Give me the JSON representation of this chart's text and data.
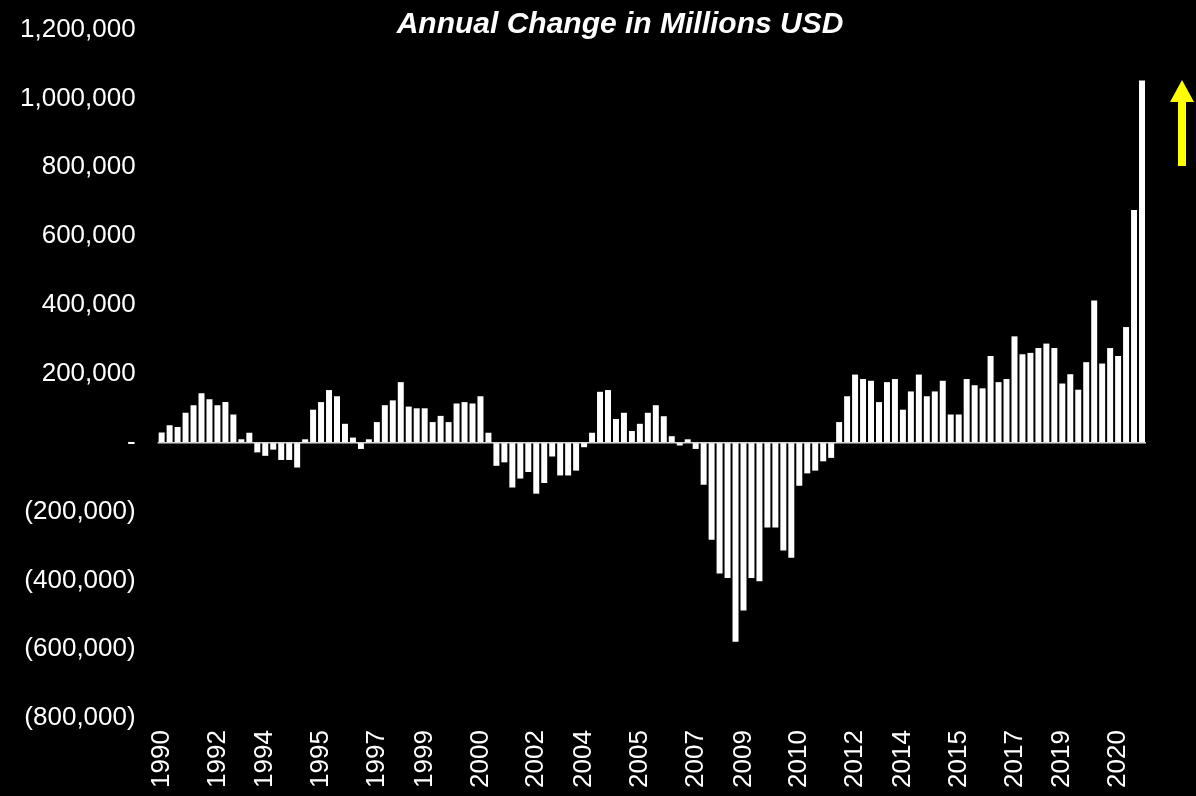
{
  "chart_data": {
    "type": "bar",
    "title": "Annual Change in Millions USD",
    "categories": [
      "1990",
      null,
      null,
      null,
      null,
      null,
      null,
      "1992",
      null,
      null,
      null,
      null,
      null,
      "1994",
      null,
      null,
      null,
      null,
      null,
      null,
      "1995",
      null,
      null,
      null,
      null,
      null,
      null,
      "1997",
      null,
      null,
      null,
      null,
      null,
      "1999",
      null,
      null,
      null,
      null,
      null,
      null,
      "2000",
      null,
      null,
      null,
      null,
      null,
      null,
      "2002",
      null,
      null,
      null,
      null,
      null,
      "2004",
      null,
      null,
      null,
      null,
      null,
      null,
      "2005",
      null,
      null,
      null,
      null,
      null,
      null,
      "2007",
      null,
      null,
      null,
      null,
      null,
      "2009",
      null,
      null,
      null,
      null,
      null,
      null,
      "2010",
      null,
      null,
      null,
      null,
      null,
      null,
      "2012",
      null,
      null,
      null,
      null,
      null,
      "2014",
      null,
      null,
      null,
      null,
      null,
      null,
      "2015",
      null,
      null,
      null,
      null,
      null,
      null,
      "2017",
      null,
      null,
      null,
      null,
      null,
      "2019",
      null,
      null,
      null,
      null,
      null,
      null,
      "2020",
      null,
      null,
      null
    ],
    "values": [
      30000,
      51000,
      46000,
      87000,
      109000,
      144000,
      126000,
      109000,
      118000,
      82000,
      10000,
      29000,
      -28000,
      -38000,
      -20000,
      -50000,
      -50000,
      -72000,
      10000,
      96000,
      118000,
      153000,
      135000,
      55000,
      15000,
      -18000,
      10000,
      60000,
      109000,
      123000,
      176000,
      105000,
      100000,
      100000,
      60000,
      78000,
      60000,
      114000,
      118000,
      114000,
      135000,
      29000,
      -67000,
      -57000,
      -130000,
      -104000,
      -85000,
      -148000,
      -117000,
      -40000,
      -95000,
      -95000,
      -81000,
      -13000,
      29000,
      148000,
      153000,
      69000,
      87000,
      34000,
      55000,
      87000,
      109000,
      77000,
      19000,
      -8000,
      10000,
      -18000,
      -122000,
      -282000,
      -380000,
      -393000,
      -578000,
      -487000,
      -393000,
      -402000,
      -246000,
      -246000,
      -313000,
      -334000,
      -125000,
      -89000,
      -81000,
      -54000,
      -44000,
      60000,
      135000,
      198000,
      185000,
      180000,
      118000,
      176000,
      185000,
      96000,
      149000,
      198000,
      135000,
      149000,
      180000,
      82000,
      82000,
      185000,
      167000,
      158000,
      252000,
      176000,
      185000,
      309000,
      257000,
      261000,
      275000,
      288000,
      275000,
      172000,
      199000,
      154000,
      234000,
      413000,
      230000,
      275000,
      252000,
      336000,
      676000,
      1052000
    ],
    "color": "#ffffff",
    "ylim": [
      -800000,
      1200000
    ],
    "yticks": [
      {
        "value": -800000,
        "label": "(800,000)"
      },
      {
        "value": -600000,
        "label": "(600,000)"
      },
      {
        "value": -400000,
        "label": "(400,000)"
      },
      {
        "value": -200000,
        "label": "(200,000)"
      },
      {
        "value": 0,
        "label": "-"
      },
      {
        "value": 200000,
        "label": "200,000"
      },
      {
        "value": 400000,
        "label": "400,000"
      },
      {
        "value": 600000,
        "label": "600,000"
      },
      {
        "value": 800000,
        "label": "800,000"
      },
      {
        "value": 1000000,
        "label": "1,000,000"
      },
      {
        "value": 1200000,
        "label": "1,200,000"
      }
    ]
  }
}
